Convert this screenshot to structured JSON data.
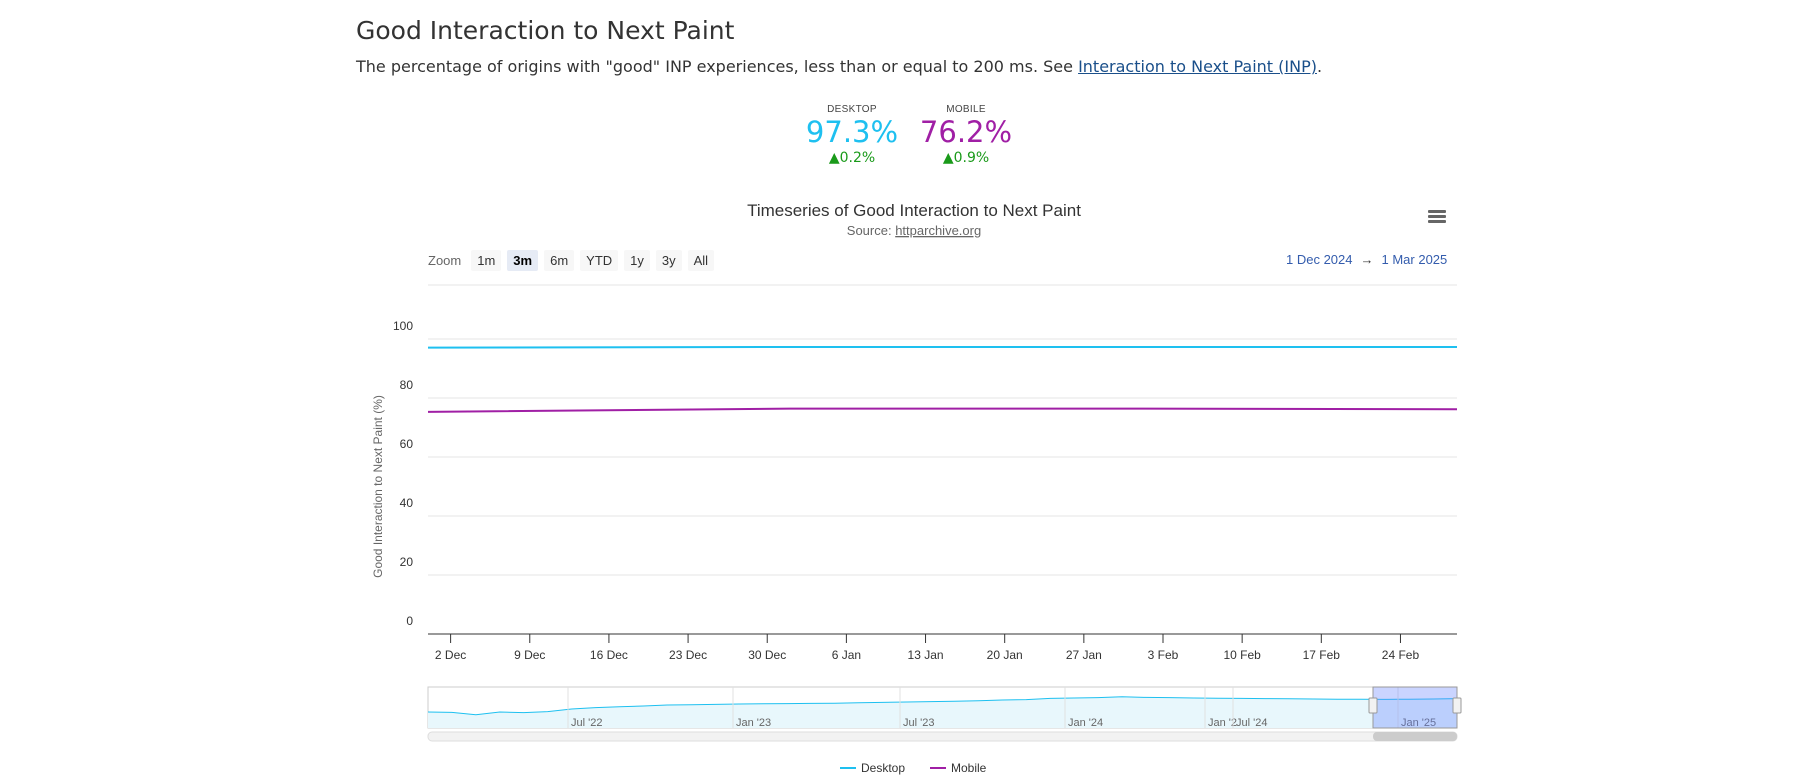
{
  "header": {
    "title": "Good Interaction to Next Paint",
    "description": "The percentage of origins with \"good\" INP experiences, less than or equal to 200 ms. See ",
    "link_text": "Interaction to Next Paint (INP)",
    "description_end": "."
  },
  "metrics": {
    "desktop": {
      "label": "DESKTOP",
      "value": "97.3%",
      "change": "▲0.2%",
      "color": "#1ec0f0"
    },
    "mobile": {
      "label": "MOBILE",
      "value": "76.2%",
      "change": "▲0.9%",
      "color": "#a01fa5"
    }
  },
  "toolbar": {
    "zoom_label": "Zoom",
    "zoom_buttons": [
      "1m",
      "3m",
      "6m",
      "YTD",
      "1y",
      "3y",
      "All"
    ],
    "active_zoom": "3m",
    "range_from": "1 Dec 2024",
    "range_arrow": "→",
    "range_to": "1 Mar 2025"
  },
  "chart_data": {
    "type": "line",
    "title": "Timeseries of Good Interaction to Next Paint",
    "source_prefix": "Source: ",
    "source_link": "httparchive.org",
    "ylabel": "Good Interaction to Next Paint (%)",
    "ylim": [
      0,
      100
    ],
    "yticks": [
      0,
      20,
      40,
      60,
      80,
      100
    ],
    "xlim": [
      "2024-11-30",
      "2025-03-01"
    ],
    "xticks": [
      {
        "date": "2024-12-02",
        "label": "2 Dec"
      },
      {
        "date": "2024-12-09",
        "label": "9 Dec"
      },
      {
        "date": "2024-12-16",
        "label": "16 Dec"
      },
      {
        "date": "2024-12-23",
        "label": "23 Dec"
      },
      {
        "date": "2024-12-30",
        "label": "30 Dec"
      },
      {
        "date": "2025-01-06",
        "label": "6 Jan"
      },
      {
        "date": "2025-01-13",
        "label": "13 Jan"
      },
      {
        "date": "2025-01-20",
        "label": "20 Jan"
      },
      {
        "date": "2025-01-27",
        "label": "27 Jan"
      },
      {
        "date": "2025-02-03",
        "label": "3 Feb"
      },
      {
        "date": "2025-02-10",
        "label": "10 Feb"
      },
      {
        "date": "2025-02-17",
        "label": "17 Feb"
      },
      {
        "date": "2025-02-24",
        "label": "24 Feb"
      }
    ],
    "grid": true,
    "legend_position": "bottom-center",
    "series": [
      {
        "name": "Desktop",
        "color": "#1ec0f0",
        "points": [
          {
            "x": "2024-11-30",
            "y": 97.1
          },
          {
            "x": "2025-01-01",
            "y": 97.3
          },
          {
            "x": "2025-02-01",
            "y": 97.3
          },
          {
            "x": "2025-03-01",
            "y": 97.3
          }
        ]
      },
      {
        "name": "Mobile",
        "color": "#a01fa5",
        "points": [
          {
            "x": "2024-11-30",
            "y": 75.3
          },
          {
            "x": "2025-01-01",
            "y": 76.4
          },
          {
            "x": "2025-02-01",
            "y": 76.4
          },
          {
            "x": "2025-03-01",
            "y": 76.2
          }
        ]
      }
    ],
    "navigator": {
      "xticks": [
        "Jul '22",
        "Jan '23",
        "Jul '23",
        "Jan '24",
        "Jan '2",
        "Jul '24",
        "Jan '25"
      ],
      "overview_values": [
        20,
        18,
        6,
        20,
        17,
        22,
        35,
        42,
        46,
        50,
        55,
        56,
        58,
        60,
        61,
        62,
        63,
        64,
        66,
        68,
        70,
        72,
        74,
        76,
        80,
        82,
        88,
        90,
        92,
        96,
        93,
        92,
        90,
        89,
        88,
        87,
        86,
        85,
        84,
        84,
        83,
        84,
        85,
        87
      ]
    }
  }
}
